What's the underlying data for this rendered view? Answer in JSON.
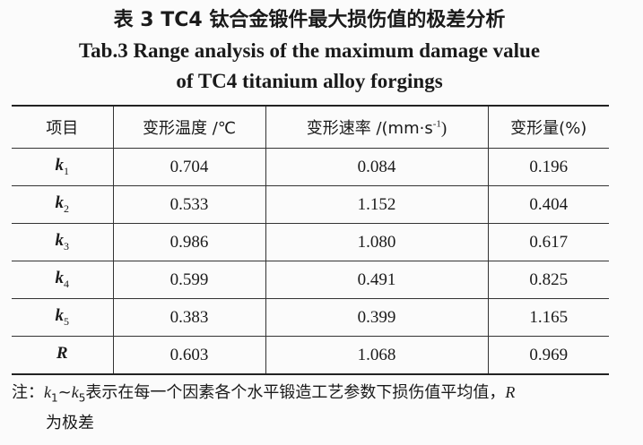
{
  "title": {
    "cn": "表 3  TC4 钛合金锻件最大损伤值的极差分析",
    "en_line1": "Tab.3  Range analysis of the maximum damage value",
    "en_line2": "of TC4 titanium alloy forgings"
  },
  "table": {
    "headers": [
      "项目",
      "变形温度 /℃",
      "变形速率 /(mm·s",
      "-1",
      ")",
      "变形量(%)"
    ],
    "rows": [
      {
        "label": "k",
        "sub": "1",
        "values": [
          "0.704",
          "0.084",
          "0.196"
        ]
      },
      {
        "label": "k",
        "sub": "2",
        "values": [
          "0.533",
          "1.152",
          "0.404"
        ]
      },
      {
        "label": "k",
        "sub": "3",
        "values": [
          "0.986",
          "1.080",
          "0.617"
        ]
      },
      {
        "label": "k",
        "sub": "4",
        "values": [
          "0.599",
          "0.491",
          "0.825"
        ]
      },
      {
        "label": "k",
        "sub": "5",
        "values": [
          "0.383",
          "0.399",
          "1.165"
        ]
      },
      {
        "label": "R",
        "sub": "",
        "values": [
          "0.603",
          "1.068",
          "0.969"
        ]
      }
    ]
  },
  "note": {
    "prefix": "注：",
    "k": "k",
    "sub1": "1",
    "tilde": "~",
    "sub5": "5",
    "text": "表示在每一个因素各个水平锻造工艺参数下损伤值平均值，",
    "r": "R",
    "line2": "为极差"
  }
}
